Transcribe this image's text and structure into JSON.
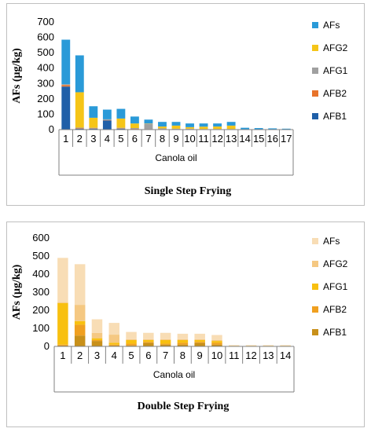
{
  "chart_data": [
    {
      "type": "bar",
      "stacked": true,
      "title": "Single Step Frying",
      "xlabel": "Canola oil",
      "ylabel": "AFs (μg/kg)",
      "ylim": [
        0,
        700
      ],
      "yticks": [
        0,
        100,
        200,
        300,
        400,
        500,
        600,
        700
      ],
      "legend": "right",
      "categories": [
        "1",
        "2",
        "3",
        "4",
        "5",
        "6",
        "7",
        "8",
        "9",
        "10",
        "11",
        "12",
        "13",
        "14",
        "15",
        "16",
        "17"
      ],
      "series": [
        {
          "name": "AFB1",
          "color": "#1f5fa8",
          "values": [
            280,
            5,
            5,
            60,
            5,
            3,
            2,
            2,
            2,
            2,
            1,
            1,
            1,
            0,
            0,
            0,
            0
          ]
        },
        {
          "name": "AFB2",
          "color": "#e8732a",
          "values": [
            10,
            3,
            2,
            2,
            2,
            2,
            1,
            1,
            1,
            1,
            1,
            1,
            1,
            0,
            0,
            0,
            0
          ]
        },
        {
          "name": "AFG1",
          "color": "#a0a0a0",
          "values": [
            5,
            5,
            5,
            5,
            5,
            5,
            35,
            5,
            3,
            3,
            2,
            2,
            2,
            0,
            0,
            0,
            0
          ]
        },
        {
          "name": "AFG2",
          "color": "#f5c518",
          "values": [
            0,
            230,
            65,
            0,
            60,
            30,
            2,
            12,
            20,
            10,
            15,
            16,
            22,
            0,
            0,
            0,
            0
          ]
        },
        {
          "name": "AFs",
          "color": "#2a9ad8",
          "values": [
            290,
            240,
            75,
            63,
            63,
            45,
            25,
            30,
            24,
            24,
            21,
            20,
            24,
            12,
            10,
            8,
            6
          ]
        }
      ]
    },
    {
      "type": "bar",
      "stacked": true,
      "title": "Double Step Frying",
      "xlabel": "Canola oil",
      "ylabel": "AFs (μg/kg)",
      "ylim": [
        0,
        600
      ],
      "yticks": [
        0,
        100,
        200,
        300,
        400,
        500,
        600
      ],
      "legend": "right",
      "categories": [
        "1",
        "2",
        "3",
        "4",
        "5",
        "6",
        "7",
        "8",
        "9",
        "10",
        "11",
        "12",
        "13",
        "14"
      ],
      "series": [
        {
          "name": "AFB1",
          "color": "#c8901a",
          "values": [
            5,
            60,
            30,
            5,
            5,
            20,
            10,
            10,
            20,
            10,
            1,
            1,
            1,
            1
          ]
        },
        {
          "name": "AFB2",
          "color": "#f0a020",
          "values": [
            5,
            60,
            5,
            5,
            10,
            5,
            5,
            10,
            5,
            10,
            1,
            1,
            1,
            1
          ]
        },
        {
          "name": "AFG1",
          "color": "#f8c010",
          "values": [
            230,
            20,
            10,
            10,
            20,
            10,
            20,
            15,
            10,
            10,
            1,
            1,
            1,
            1
          ]
        },
        {
          "name": "AFG2",
          "color": "#f5c882",
          "values": [
            5,
            90,
            30,
            45,
            5,
            5,
            5,
            5,
            5,
            5,
            1,
            1,
            1,
            1
          ]
        },
        {
          "name": "AFs",
          "color": "#f8ddb5",
          "values": [
            245,
            225,
            75,
            65,
            40,
            35,
            35,
            30,
            30,
            28,
            3,
            3,
            3,
            3
          ]
        }
      ]
    }
  ]
}
